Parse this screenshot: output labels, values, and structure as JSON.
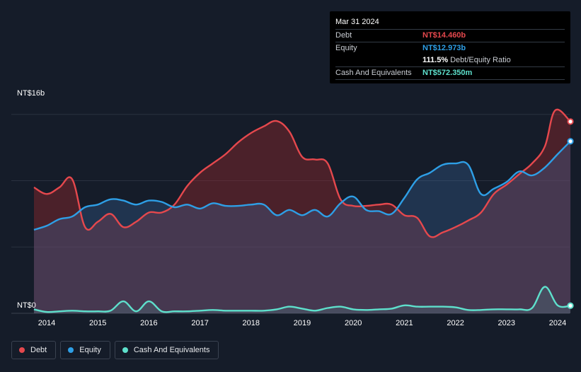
{
  "chart_data": {
    "type": "area",
    "y_unit_label_top": "NT$16b",
    "y_unit_label_bottom": "NT$0",
    "ylim": [
      0,
      16
    ],
    "xlim": [
      2013.3,
      2024.25
    ],
    "x_ticks": [
      "2014",
      "2015",
      "2016",
      "2017",
      "2018",
      "2019",
      "2020",
      "2021",
      "2022",
      "2023",
      "2024"
    ],
    "series": [
      {
        "name": "Debt",
        "color": "#e5484d",
        "points": [
          [
            2013.75,
            9.5
          ],
          [
            2014.0,
            9.0
          ],
          [
            2014.25,
            9.5
          ],
          [
            2014.5,
            10.1
          ],
          [
            2014.75,
            6.5
          ],
          [
            2015.0,
            6.9
          ],
          [
            2015.25,
            7.5
          ],
          [
            2015.5,
            6.5
          ],
          [
            2015.75,
            6.9
          ],
          [
            2016.0,
            7.6
          ],
          [
            2016.25,
            7.6
          ],
          [
            2016.5,
            8.2
          ],
          [
            2016.75,
            9.6
          ],
          [
            2017.0,
            10.6
          ],
          [
            2017.25,
            11.3
          ],
          [
            2017.5,
            12.0
          ],
          [
            2017.75,
            12.9
          ],
          [
            2018.0,
            13.6
          ],
          [
            2018.25,
            14.1
          ],
          [
            2018.5,
            14.5
          ],
          [
            2018.75,
            13.7
          ],
          [
            2019.0,
            11.8
          ],
          [
            2019.25,
            11.6
          ],
          [
            2019.5,
            11.3
          ],
          [
            2019.75,
            8.6
          ],
          [
            2020.0,
            8.1
          ],
          [
            2020.25,
            8.1
          ],
          [
            2020.5,
            8.2
          ],
          [
            2020.75,
            8.2
          ],
          [
            2021.0,
            7.4
          ],
          [
            2021.25,
            7.2
          ],
          [
            2021.5,
            5.8
          ],
          [
            2021.75,
            6.1
          ],
          [
            2022.0,
            6.5
          ],
          [
            2022.25,
            7.0
          ],
          [
            2022.5,
            7.6
          ],
          [
            2022.75,
            9.0
          ],
          [
            2023.0,
            9.7
          ],
          [
            2023.25,
            10.5
          ],
          [
            2023.5,
            11.3
          ],
          [
            2023.75,
            12.6
          ],
          [
            2023.95,
            15.3
          ],
          [
            2024.25,
            14.46
          ]
        ]
      },
      {
        "name": "Equity",
        "color": "#2e9fe6",
        "points": [
          [
            2013.75,
            6.3
          ],
          [
            2014.0,
            6.6
          ],
          [
            2014.25,
            7.1
          ],
          [
            2014.5,
            7.3
          ],
          [
            2014.75,
            8.0
          ],
          [
            2015.0,
            8.2
          ],
          [
            2015.25,
            8.6
          ],
          [
            2015.5,
            8.5
          ],
          [
            2015.75,
            8.2
          ],
          [
            2016.0,
            8.5
          ],
          [
            2016.25,
            8.4
          ],
          [
            2016.5,
            8.0
          ],
          [
            2016.75,
            8.2
          ],
          [
            2017.0,
            7.9
          ],
          [
            2017.25,
            8.3
          ],
          [
            2017.5,
            8.1
          ],
          [
            2017.75,
            8.1
          ],
          [
            2018.0,
            8.2
          ],
          [
            2018.25,
            8.2
          ],
          [
            2018.5,
            7.4
          ],
          [
            2018.75,
            7.8
          ],
          [
            2019.0,
            7.4
          ],
          [
            2019.25,
            7.8
          ],
          [
            2019.5,
            7.3
          ],
          [
            2019.75,
            8.3
          ],
          [
            2020.0,
            8.8
          ],
          [
            2020.25,
            7.8
          ],
          [
            2020.5,
            7.7
          ],
          [
            2020.75,
            7.5
          ],
          [
            2021.0,
            8.7
          ],
          [
            2021.25,
            10.1
          ],
          [
            2021.5,
            10.6
          ],
          [
            2021.75,
            11.2
          ],
          [
            2022.0,
            11.3
          ],
          [
            2022.25,
            11.2
          ],
          [
            2022.5,
            9.0
          ],
          [
            2022.75,
            9.4
          ],
          [
            2023.0,
            9.9
          ],
          [
            2023.25,
            10.7
          ],
          [
            2023.5,
            10.4
          ],
          [
            2023.75,
            11.0
          ],
          [
            2024.0,
            12.0
          ],
          [
            2024.25,
            12.973
          ]
        ]
      },
      {
        "name": "Cash And Equivalents",
        "color": "#5ee0cc",
        "points": [
          [
            2013.75,
            0.3
          ],
          [
            2014.0,
            0.1
          ],
          [
            2014.25,
            0.15
          ],
          [
            2014.5,
            0.2
          ],
          [
            2014.75,
            0.15
          ],
          [
            2015.0,
            0.15
          ],
          [
            2015.25,
            0.2
          ],
          [
            2015.5,
            0.9
          ],
          [
            2015.75,
            0.15
          ],
          [
            2016.0,
            0.9
          ],
          [
            2016.25,
            0.15
          ],
          [
            2016.5,
            0.15
          ],
          [
            2016.75,
            0.15
          ],
          [
            2017.0,
            0.2
          ],
          [
            2017.25,
            0.25
          ],
          [
            2017.5,
            0.2
          ],
          [
            2017.75,
            0.2
          ],
          [
            2018.0,
            0.2
          ],
          [
            2018.25,
            0.2
          ],
          [
            2018.5,
            0.3
          ],
          [
            2018.75,
            0.5
          ],
          [
            2019.0,
            0.35
          ],
          [
            2019.25,
            0.2
          ],
          [
            2019.5,
            0.4
          ],
          [
            2019.75,
            0.5
          ],
          [
            2020.0,
            0.3
          ],
          [
            2020.25,
            0.25
          ],
          [
            2020.5,
            0.3
          ],
          [
            2020.75,
            0.35
          ],
          [
            2021.0,
            0.6
          ],
          [
            2021.25,
            0.5
          ],
          [
            2021.5,
            0.5
          ],
          [
            2021.75,
            0.5
          ],
          [
            2022.0,
            0.45
          ],
          [
            2022.25,
            0.25
          ],
          [
            2022.5,
            0.25
          ],
          [
            2022.75,
            0.3
          ],
          [
            2023.0,
            0.3
          ],
          [
            2023.25,
            0.3
          ],
          [
            2023.5,
            0.4
          ],
          [
            2023.75,
            2.0
          ],
          [
            2024.0,
            0.6
          ],
          [
            2024.25,
            0.572
          ]
        ]
      }
    ]
  },
  "tooltip": {
    "date": "Mar 31 2024",
    "debt_label": "Debt",
    "debt_value": "NT$14.460b",
    "equity_label": "Equity",
    "equity_value": "NT$12.973b",
    "ratio_value": "111.5%",
    "ratio_label": "Debt/Equity Ratio",
    "cash_label": "Cash And Equivalents",
    "cash_value": "NT$572.350m"
  },
  "legend": {
    "debt": "Debt",
    "equity": "Equity",
    "cash": "Cash And Equivalents"
  },
  "colors": {
    "debt": "#e5484d",
    "equity": "#2e9fe6",
    "cash": "#5ee0cc"
  }
}
